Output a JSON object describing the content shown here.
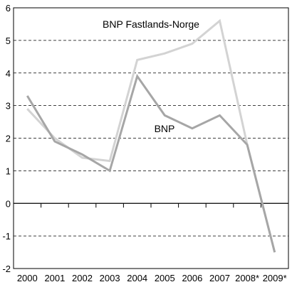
{
  "chart_data": {
    "type": "line",
    "categories": [
      "2000",
      "2001",
      "2002",
      "2003",
      "2004",
      "2005",
      "2006",
      "2007",
      "2008*",
      "2009*"
    ],
    "ylim": [
      -2,
      6
    ],
    "yticks": [
      6,
      5,
      4,
      3,
      2,
      1,
      0,
      -1,
      -2
    ],
    "grid": "horizontal dashed",
    "series": [
      {
        "name": "BNP Fastlands-Norge",
        "color": "#d3d3d3",
        "values": [
          2.9,
          2.0,
          1.4,
          1.3,
          4.4,
          4.6,
          4.9,
          5.6,
          1.8,
          -1.5
        ]
      },
      {
        "name": "BNP",
        "color": "#a6a6a6",
        "values": [
          3.3,
          1.9,
          1.5,
          1.0,
          3.9,
          2.7,
          2.3,
          2.7,
          1.8,
          -1.5
        ]
      }
    ]
  }
}
